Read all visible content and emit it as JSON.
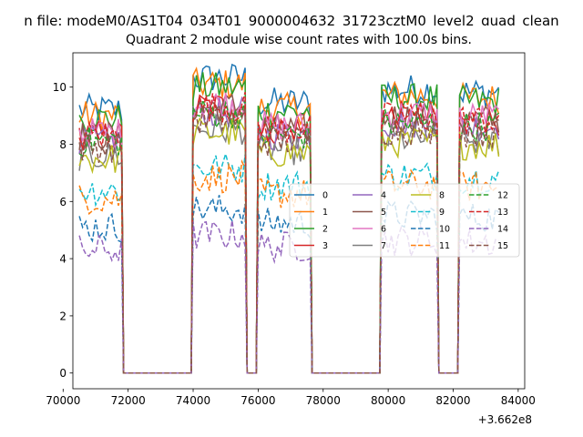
{
  "figure": {
    "suptitle": "n file: modeM0/AS1T04_034T01_9000004632_31723cztM0_level2_quad_clean",
    "title": "Quadrant 2 module wise count rates with 100.0s bins."
  },
  "chart_data": {
    "type": "line",
    "title": "Quadrant 2 module wise count rates with 100.0s bins.",
    "xlabel": "",
    "ylabel": "",
    "x_offset_label": "+3.662e8",
    "xlim": [
      70300,
      84200
    ],
    "ylim": [
      -0.55,
      11.2
    ],
    "xticks": [
      70000,
      72000,
      74000,
      76000,
      78000,
      80000,
      82000,
      84000
    ],
    "xtick_labels": [
      "70000",
      "72000",
      "74000",
      "76000",
      "78000",
      "80000",
      "82000",
      "84000"
    ],
    "yticks": [
      0,
      2,
      4,
      6,
      8,
      10
    ],
    "ytick_labels": [
      "0",
      "2",
      "4",
      "6",
      "8",
      "10"
    ],
    "grid": false,
    "legend": {
      "placement": "center-right",
      "columns": 4
    },
    "segments": [
      {
        "start": 70500,
        "end": 71800
      },
      {
        "start": 74000,
        "end": 75600
      },
      {
        "start": 76000,
        "end": 77600
      },
      {
        "start": 79800,
        "end": 81500
      },
      {
        "start": 82200,
        "end": 83400
      }
    ],
    "zero_gaps": [
      {
        "start": 71800,
        "end": 74000
      },
      {
        "start": 75600,
        "end": 76000
      },
      {
        "start": 77600,
        "end": 79800
      },
      {
        "start": 81500,
        "end": 82200
      }
    ],
    "series": [
      {
        "name": "0",
        "color": "#1f77b4",
        "dashed": false,
        "level": 9.2
      },
      {
        "name": "1",
        "color": "#ff7f0e",
        "dashed": false,
        "level": 9.0
      },
      {
        "name": "2",
        "color": "#2ca02c",
        "dashed": false,
        "level": 8.9
      },
      {
        "name": "3",
        "color": "#d62728",
        "dashed": false,
        "level": 8.3
      },
      {
        "name": "4",
        "color": "#9467bd",
        "dashed": false,
        "level": 8.1
      },
      {
        "name": "5",
        "color": "#8c564b",
        "dashed": false,
        "level": 8.3
      },
      {
        "name": "6",
        "color": "#e377c2",
        "dashed": false,
        "level": 8.4
      },
      {
        "name": "7",
        "color": "#7f7f7f",
        "dashed": false,
        "level": 7.6
      },
      {
        "name": "8",
        "color": "#bcbd22",
        "dashed": false,
        "level": 7.5
      },
      {
        "name": "9",
        "color": "#17becf",
        "dashed": true,
        "level": 6.4
      },
      {
        "name": "10",
        "color": "#1f77b4",
        "dashed": true,
        "level": 5.1
      },
      {
        "name": "11",
        "color": "#ff7f0e",
        "dashed": true,
        "level": 6.1
      },
      {
        "name": "12",
        "color": "#2ca02c",
        "dashed": true,
        "level": 8.1
      },
      {
        "name": "13",
        "color": "#d62728",
        "dashed": true,
        "level": 8.3
      },
      {
        "name": "14",
        "color": "#9467bd",
        "dashed": true,
        "level": 4.3
      },
      {
        "name": "15",
        "color": "#8c564b",
        "dashed": true,
        "level": 7.9
      }
    ]
  }
}
